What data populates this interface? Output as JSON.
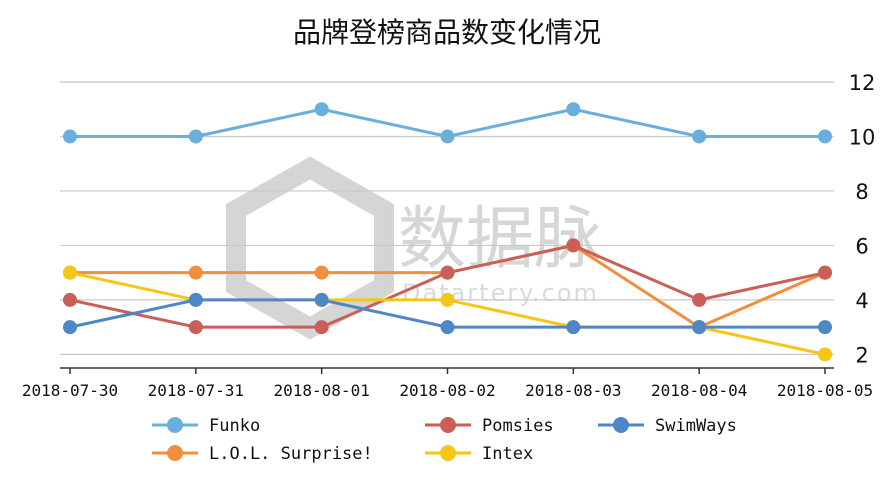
{
  "chart_data": {
    "type": "line",
    "title": "品牌登榜商品数变化情况",
    "categories": [
      "2018-07-30",
      "2018-07-31",
      "2018-08-01",
      "2018-08-02",
      "2018-08-03",
      "2018-08-04",
      "2018-08-05"
    ],
    "ylim": [
      1.5,
      12
    ],
    "yticks": [
      2,
      4,
      6,
      8,
      10,
      12
    ],
    "ytick_labels": [
      "2",
      "4",
      "6",
      "8",
      "10",
      "12"
    ],
    "y_axis_side": "right",
    "grid": true,
    "legend_position": "bottom",
    "series": [
      {
        "name": "Funko",
        "color": "#6aaedc",
        "values": [
          10,
          10,
          11,
          10,
          11,
          10,
          10
        ]
      },
      {
        "name": "L.O.L. Surprise!",
        "color": "#f28e3c",
        "values": [
          5,
          5,
          5,
          5,
          6,
          3,
          5
        ]
      },
      {
        "name": "Pomsies",
        "color": "#c95f57",
        "values": [
          4,
          3,
          3,
          5,
          6,
          4,
          5
        ]
      },
      {
        "name": "Intex",
        "color": "#f5c518",
        "values": [
          5,
          4,
          4,
          4,
          3,
          3,
          2
        ]
      },
      {
        "name": "SwimWays",
        "color": "#4f86c6",
        "values": [
          3,
          4,
          4,
          3,
          3,
          3,
          3
        ]
      }
    ]
  },
  "watermark": {
    "brand": "数据脉",
    "sub": "Datartery.com"
  }
}
